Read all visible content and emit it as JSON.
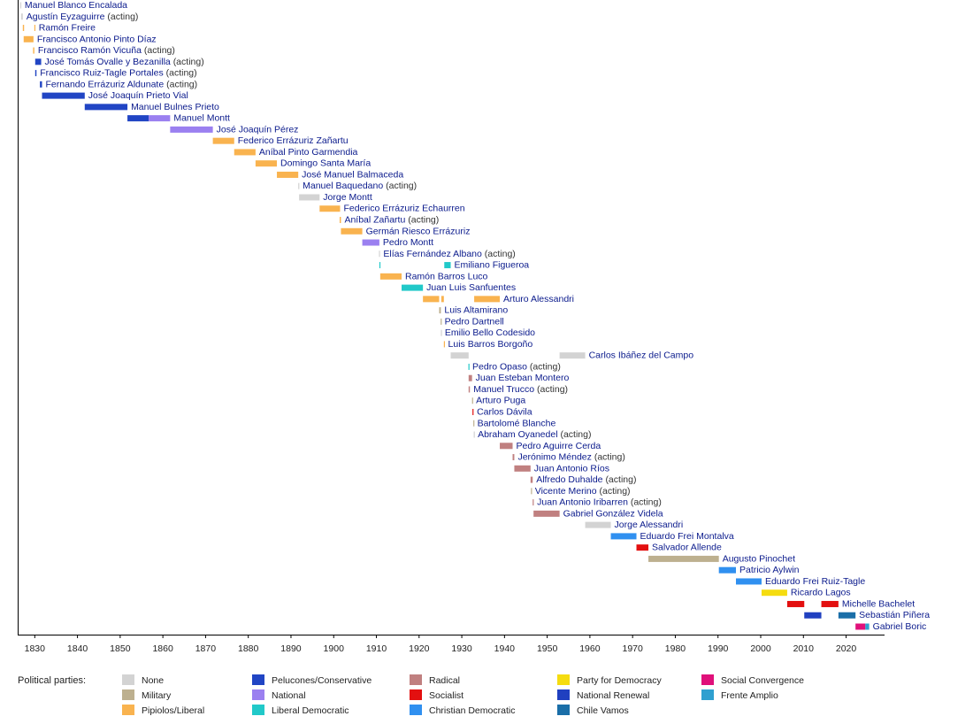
{
  "chart_data": {
    "type": "timeline",
    "xlim": [
      1826,
      2029
    ],
    "xticks": [
      1830,
      1840,
      1850,
      1860,
      1870,
      1880,
      1890,
      1900,
      1910,
      1920,
      1930,
      1940,
      1950,
      1960,
      1970,
      1980,
      1990,
      2000,
      2010,
      2020
    ],
    "legend_title": "Political parties:",
    "parties": [
      {
        "name": "None",
        "color": "#d3d3d3"
      },
      {
        "name": "Military",
        "color": "#bdb08f"
      },
      {
        "name": "Pipiolos/Liberal",
        "color": "#f9b34f"
      },
      {
        "name": "Pelucones/Conservative",
        "color": "#2145c4"
      },
      {
        "name": "National",
        "color": "#9b80f0"
      },
      {
        "name": "Liberal Democratic",
        "color": "#21c9c9"
      },
      {
        "name": "Radical",
        "color": "#c08080"
      },
      {
        "name": "Socialist",
        "color": "#e31010"
      },
      {
        "name": "Christian Democratic",
        "color": "#3090f0"
      },
      {
        "name": "Party for Democracy",
        "color": "#f5dc10"
      },
      {
        "name": "National Renewal",
        "color": "#2040c0"
      },
      {
        "name": "Chile Vamos",
        "color": "#1a6ea8"
      },
      {
        "name": "Social Convergence",
        "color": "#e0107a"
      },
      {
        "name": "Frente Amplio",
        "color": "#2fa0d0"
      }
    ],
    "rows": [
      {
        "name": "Manuel Blanco Encalada",
        "terms": [
          {
            "start": 1826.6,
            "end": 1826.8,
            "party": "None"
          }
        ]
      },
      {
        "name": "Agustín Eyzaguirre",
        "note": "(acting)",
        "terms": [
          {
            "start": 1826.8,
            "end": 1827.2,
            "party": "None"
          }
        ]
      },
      {
        "name": "Ramón Freire",
        "terms": [
          {
            "start": 1827.2,
            "end": 1827.5,
            "party": "Pipiolos/Liberal"
          },
          {
            "start": 1829.9,
            "end": 1830.1,
            "party": "Pipiolos/Liberal"
          }
        ]
      },
      {
        "name": "Francisco Antonio Pinto Díaz",
        "terms": [
          {
            "start": 1827.4,
            "end": 1829.7,
            "party": "Pipiolos/Liberal"
          }
        ]
      },
      {
        "name": "Francisco Ramón Vicuña",
        "note": "(acting)",
        "terms": [
          {
            "start": 1829.6,
            "end": 1829.9,
            "party": "Pipiolos/Liberal"
          }
        ]
      },
      {
        "name": "José Tomás Ovalle y Bezanilla",
        "note": "(acting)",
        "terms": [
          {
            "start": 1830.1,
            "end": 1831.5,
            "party": "Pelucones/Conservative"
          }
        ]
      },
      {
        "name": "Francisco Ruiz-Tagle Portales",
        "note": "(acting)",
        "terms": [
          {
            "start": 1830.1,
            "end": 1830.4,
            "party": "Pelucones/Conservative"
          }
        ]
      },
      {
        "name": "Fernando Errázuriz Aldunate",
        "note": "(acting)",
        "terms": [
          {
            "start": 1831.2,
            "end": 1831.7,
            "party": "Pelucones/Conservative"
          }
        ]
      },
      {
        "name": "José Joaquín Prieto Vial",
        "terms": [
          {
            "start": 1831.7,
            "end": 1841.7,
            "party": "Pelucones/Conservative"
          }
        ]
      },
      {
        "name": "Manuel Bulnes Prieto",
        "terms": [
          {
            "start": 1841.7,
            "end": 1851.7,
            "party": "Pelucones/Conservative"
          }
        ]
      },
      {
        "name": "Manuel Montt",
        "terms": [
          {
            "start": 1851.7,
            "end": 1856.7,
            "party": "Pelucones/Conservative"
          },
          {
            "start": 1856.7,
            "end": 1861.7,
            "party": "National"
          }
        ]
      },
      {
        "name": "José Joaquín Pérez",
        "terms": [
          {
            "start": 1861.7,
            "end": 1871.7,
            "party": "National"
          }
        ]
      },
      {
        "name": "Federico Errázuriz Zañartu",
        "terms": [
          {
            "start": 1871.7,
            "end": 1876.7,
            "party": "Pipiolos/Liberal"
          }
        ]
      },
      {
        "name": "Aníbal Pinto Garmendia",
        "terms": [
          {
            "start": 1876.7,
            "end": 1881.7,
            "party": "Pipiolos/Liberal"
          }
        ]
      },
      {
        "name": "Domingo Santa María",
        "terms": [
          {
            "start": 1881.7,
            "end": 1886.7,
            "party": "Pipiolos/Liberal"
          }
        ]
      },
      {
        "name": "José Manuel Balmaceda",
        "terms": [
          {
            "start": 1886.7,
            "end": 1891.7,
            "party": "Pipiolos/Liberal"
          }
        ]
      },
      {
        "name": "Manuel Baquedano",
        "note": "(acting)",
        "terms": [
          {
            "start": 1891.7,
            "end": 1891.9,
            "party": "None"
          }
        ]
      },
      {
        "name": "Jorge Montt",
        "terms": [
          {
            "start": 1891.9,
            "end": 1896.7,
            "party": "None"
          }
        ]
      },
      {
        "name": "Federico Errázuriz Echaurren",
        "terms": [
          {
            "start": 1896.7,
            "end": 1901.5,
            "party": "Pipiolos/Liberal"
          }
        ]
      },
      {
        "name": "Aníbal Zañartu",
        "note": "(acting)",
        "terms": [
          {
            "start": 1901.4,
            "end": 1901.7,
            "party": "Pipiolos/Liberal"
          }
        ]
      },
      {
        "name": "Germán Riesco Errázuriz",
        "terms": [
          {
            "start": 1901.7,
            "end": 1906.7,
            "party": "Pipiolos/Liberal"
          }
        ]
      },
      {
        "name": "Pedro Montt",
        "terms": [
          {
            "start": 1906.7,
            "end": 1910.7,
            "party": "National"
          }
        ]
      },
      {
        "name": "Elías Fernández Albano",
        "note": "(acting)",
        "terms": [
          {
            "start": 1910.6,
            "end": 1910.8,
            "party": "None"
          }
        ]
      },
      {
        "name": "Emiliano Figueroa",
        "terms": [
          {
            "start": 1910.7,
            "end": 1910.9,
            "party": "Liberal Democratic"
          },
          {
            "start": 1925.9,
            "end": 1927.4,
            "party": "Liberal Democratic"
          }
        ]
      },
      {
        "name": "Ramón Barros Luco",
        "terms": [
          {
            "start": 1910.9,
            "end": 1915.9,
            "party": "Pipiolos/Liberal"
          }
        ]
      },
      {
        "name": "Juan Luis Sanfuentes",
        "terms": [
          {
            "start": 1915.9,
            "end": 1920.9,
            "party": "Liberal Democratic"
          }
        ]
      },
      {
        "name": "Arturo Alessandri",
        "terms": [
          {
            "start": 1920.9,
            "end": 1924.7,
            "party": "Pipiolos/Liberal"
          },
          {
            "start": 1925.2,
            "end": 1925.8,
            "party": "Pipiolos/Liberal"
          },
          {
            "start": 1932.9,
            "end": 1938.9,
            "party": "Pipiolos/Liberal"
          }
        ]
      },
      {
        "name": "Luis Altamirano",
        "terms": [
          {
            "start": 1924.7,
            "end": 1925.1,
            "party": "Military"
          }
        ]
      },
      {
        "name": "Pedro Dartnell",
        "terms": [
          {
            "start": 1925.05,
            "end": 1925.15,
            "party": "Military"
          }
        ]
      },
      {
        "name": "Emilio Bello Codesido",
        "terms": [
          {
            "start": 1925.1,
            "end": 1925.2,
            "party": "None"
          }
        ]
      },
      {
        "name": "Luis Barros Borgoño",
        "terms": [
          {
            "start": 1925.8,
            "end": 1925.95,
            "party": "Pipiolos/Liberal"
          }
        ]
      },
      {
        "name": "Carlos Ibáñez del Campo",
        "terms": [
          {
            "start": 1927.4,
            "end": 1931.6,
            "party": "None"
          },
          {
            "start": 1952.9,
            "end": 1958.9,
            "party": "None"
          }
        ]
      },
      {
        "name": "Pedro Opaso",
        "note": "(acting)",
        "terms": [
          {
            "start": 1931.55,
            "end": 1931.65,
            "party": "Liberal Democratic"
          }
        ]
      },
      {
        "name": "Juan Esteban Montero",
        "terms": [
          {
            "start": 1931.6,
            "end": 1932.4,
            "party": "Radical"
          }
        ]
      },
      {
        "name": "Manuel Trucco",
        "note": "(acting)",
        "terms": [
          {
            "start": 1931.6,
            "end": 1931.9,
            "party": "Radical"
          }
        ]
      },
      {
        "name": "Arturo Puga",
        "terms": [
          {
            "start": 1932.4,
            "end": 1932.5,
            "party": "Military"
          }
        ]
      },
      {
        "name": "Carlos Dávila",
        "terms": [
          {
            "start": 1932.5,
            "end": 1932.7,
            "party": "Socialist"
          }
        ]
      },
      {
        "name": "Bartolomé Blanche",
        "terms": [
          {
            "start": 1932.7,
            "end": 1932.8,
            "party": "Military"
          }
        ]
      },
      {
        "name": "Abraham Oyanedel",
        "note": "(acting)",
        "terms": [
          {
            "start": 1932.8,
            "end": 1932.9,
            "party": "None"
          }
        ]
      },
      {
        "name": "Pedro Aguirre Cerda",
        "terms": [
          {
            "start": 1938.9,
            "end": 1941.9,
            "party": "Radical"
          }
        ]
      },
      {
        "name": "Jerónimo Méndez",
        "note": "(acting)",
        "terms": [
          {
            "start": 1941.9,
            "end": 1942.3,
            "party": "Radical"
          }
        ]
      },
      {
        "name": "Juan Antonio Ríos",
        "terms": [
          {
            "start": 1942.3,
            "end": 1946.1,
            "party": "Radical"
          }
        ]
      },
      {
        "name": "Alfredo Duhalde",
        "note": "(acting)",
        "terms": [
          {
            "start": 1946.1,
            "end": 1946.6,
            "party": "Radical"
          }
        ]
      },
      {
        "name": "Vicente Merino",
        "note": "(acting)",
        "terms": [
          {
            "start": 1946.2,
            "end": 1946.3,
            "party": "Military"
          }
        ]
      },
      {
        "name": "Juan Antonio Iribarren",
        "note": "(acting)",
        "terms": [
          {
            "start": 1946.6,
            "end": 1946.8,
            "party": "Radical"
          }
        ]
      },
      {
        "name": "Gabriel González Videla",
        "terms": [
          {
            "start": 1946.8,
            "end": 1952.9,
            "party": "Radical"
          }
        ]
      },
      {
        "name": "Jorge Alessandri",
        "terms": [
          {
            "start": 1958.9,
            "end": 1964.9,
            "party": "None"
          }
        ]
      },
      {
        "name": "Eduardo Frei Montalva",
        "terms": [
          {
            "start": 1964.9,
            "end": 1970.9,
            "party": "Christian Democratic"
          }
        ]
      },
      {
        "name": "Salvador Allende",
        "terms": [
          {
            "start": 1970.9,
            "end": 1973.7,
            "party": "Socialist"
          }
        ]
      },
      {
        "name": "Augusto Pinochet",
        "terms": [
          {
            "start": 1973.7,
            "end": 1990.2,
            "party": "Military"
          }
        ]
      },
      {
        "name": "Patricio Aylwin",
        "terms": [
          {
            "start": 1990.2,
            "end": 1994.2,
            "party": "Christian Democratic"
          }
        ]
      },
      {
        "name": "Eduardo Frei Ruiz-Tagle",
        "terms": [
          {
            "start": 1994.2,
            "end": 2000.2,
            "party": "Christian Democratic"
          }
        ]
      },
      {
        "name": "Ricardo Lagos",
        "terms": [
          {
            "start": 2000.2,
            "end": 2006.2,
            "party": "Party for Democracy"
          }
        ]
      },
      {
        "name": "Michelle Bachelet",
        "terms": [
          {
            "start": 2006.2,
            "end": 2010.2,
            "party": "Socialist"
          },
          {
            "start": 2014.2,
            "end": 2018.2,
            "party": "Socialist"
          }
        ]
      },
      {
        "name": "Sebastián Piñera",
        "terms": [
          {
            "start": 2010.2,
            "end": 2014.2,
            "party": "National Renewal"
          },
          {
            "start": 2018.2,
            "end": 2022.2,
            "party": "Chile Vamos"
          }
        ]
      },
      {
        "name": "Gabriel Boric",
        "terms": [
          {
            "start": 2022.2,
            "end": 2024.5,
            "party": "Social Convergence"
          },
          {
            "start": 2024.5,
            "end": 2025.4,
            "party": "Frente Amplio"
          }
        ]
      }
    ]
  }
}
